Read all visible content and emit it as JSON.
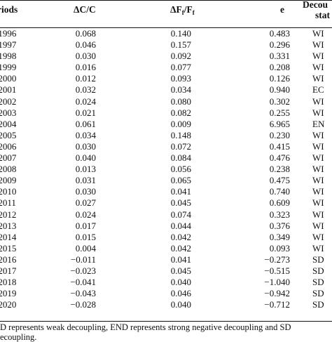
{
  "table": {
    "headers": {
      "period": "riods",
      "dc": "ΔC/C",
      "df_main": "ΔF",
      "df_sub": "f",
      "df_slash": "/F",
      "df_sub2": "f",
      "e": "e",
      "status_line1": "Decou",
      "status_line2": "stat"
    },
    "rows": [
      {
        "period": "−1996",
        "dc": "0.068",
        "df": "0.140",
        "e": "0.483",
        "status": "WI"
      },
      {
        "period": "−1997",
        "dc": "0.046",
        "df": "0.157",
        "e": "0.296",
        "status": "WI"
      },
      {
        "period": "−1998",
        "dc": "0.030",
        "df": "0.092",
        "e": "0.331",
        "status": "WI"
      },
      {
        "period": "−1999",
        "dc": "0.016",
        "df": "0.077",
        "e": "0.208",
        "status": "WI"
      },
      {
        "period": "−2000",
        "dc": "0.012",
        "df": "0.093",
        "e": "0.126",
        "status": "WI"
      },
      {
        "period": "−2001",
        "dc": "0.032",
        "df": "0.034",
        "e": "0.940",
        "status": "EC"
      },
      {
        "period": "−2002",
        "dc": "0.024",
        "df": "0.080",
        "e": "0.302",
        "status": "WI"
      },
      {
        "period": "−2003",
        "dc": "0.021",
        "df": "0.082",
        "e": "0.255",
        "status": "WI"
      },
      {
        "period": "−2004",
        "dc": "0.061",
        "df": "0.009",
        "e": "6.965",
        "status": "EN"
      },
      {
        "period": "−2005",
        "dc": "0.034",
        "df": "0.148",
        "e": "0.230",
        "status": "WI"
      },
      {
        "period": "−2006",
        "dc": "0.030",
        "df": "0.072",
        "e": "0.415",
        "status": "WI"
      },
      {
        "period": "−2007",
        "dc": "0.040",
        "df": "0.084",
        "e": "0.476",
        "status": "WI"
      },
      {
        "period": "−2008",
        "dc": "0.013",
        "df": "0.056",
        "e": "0.238",
        "status": "WI"
      },
      {
        "period": "−2009",
        "dc": "0.031",
        "df": "0.065",
        "e": "0.475",
        "status": "WI"
      },
      {
        "period": "−2010",
        "dc": "0.030",
        "df": "0.041",
        "e": "0.740",
        "status": "WI"
      },
      {
        "period": "−2011",
        "dc": "0.027",
        "df": "0.045",
        "e": "0.609",
        "status": "WI"
      },
      {
        "period": "−2012",
        "dc": "0.024",
        "df": "0.074",
        "e": "0.323",
        "status": "WI"
      },
      {
        "period": "−2013",
        "dc": "0.017",
        "df": "0.044",
        "e": "0.376",
        "status": "WI"
      },
      {
        "period": "−2014",
        "dc": "0.015",
        "df": "0.042",
        "e": "0.349",
        "status": "WI"
      },
      {
        "period": "−2015",
        "dc": "0.004",
        "df": "0.042",
        "e": "0.093",
        "status": "WI"
      },
      {
        "period": "−2016",
        "dc": "−0.011",
        "df": "0.041",
        "e": "−0.273",
        "status": "SD"
      },
      {
        "period": "−2017",
        "dc": "−0.023",
        "df": "0.045",
        "e": "−0.515",
        "status": "SD"
      },
      {
        "period": "−2018",
        "dc": "−0.041",
        "df": "0.040",
        "e": "−1.040",
        "status": "SD"
      },
      {
        "period": "−2019",
        "dc": "−0.043",
        "df": "0.046",
        "e": "−0.942",
        "status": "SD"
      },
      {
        "period": "−2020",
        "dc": "−0.028",
        "df": "0.040",
        "e": "−0.712",
        "status": "SD"
      }
    ],
    "footnote_line1": "D represents weak decoupling, END represents strong negative decoupling and SD",
    "footnote_line2": "ecoupling."
  }
}
